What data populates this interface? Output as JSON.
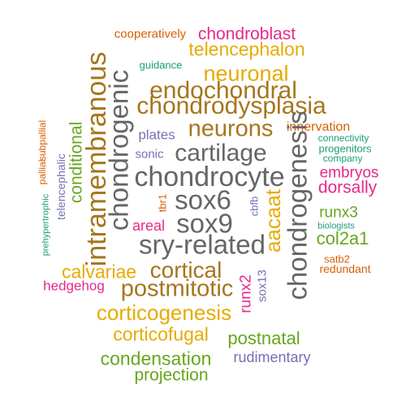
{
  "palette": {
    "orange": "#D95F02",
    "magenta": "#E7298A",
    "gold": "#E6AB02",
    "teal": "#1B9E77",
    "brown": "#A6761D",
    "gray": "#666666",
    "purple": "#7570B3",
    "green": "#66A61E"
  },
  "words": [
    {
      "text": "cooperatively",
      "color": "orange",
      "size": "xs"
    },
    {
      "text": "chondroblast",
      "color": "magenta",
      "size": "s"
    },
    {
      "text": "telencephalon",
      "color": "gold",
      "size": "m"
    },
    {
      "text": "guidance",
      "color": "teal",
      "size": "xs"
    },
    {
      "text": "neuronal",
      "color": "gold",
      "size": "m"
    },
    {
      "text": "endochondral",
      "color": "brown",
      "size": "l"
    },
    {
      "text": "chondrodysplasia",
      "color": "brown",
      "size": "l"
    },
    {
      "text": "neurons",
      "color": "brown",
      "size": "l"
    },
    {
      "text": "innervation",
      "color": "orange",
      "size": "s"
    },
    {
      "text": "plates",
      "color": "purple",
      "size": "s"
    },
    {
      "text": "connectivity",
      "color": "teal",
      "size": "xs"
    },
    {
      "text": "progenitors",
      "color": "teal",
      "size": "xs"
    },
    {
      "text": "company",
      "color": "teal",
      "size": "xs"
    },
    {
      "text": "sonic",
      "color": "purple",
      "size": "xs"
    },
    {
      "text": "cartilage",
      "color": "gray",
      "size": "l"
    },
    {
      "text": "embryos",
      "color": "magenta",
      "size": "m"
    },
    {
      "text": "dorsally",
      "color": "magenta",
      "size": "m"
    },
    {
      "text": "chondrocyte",
      "color": "gray",
      "size": "xl"
    },
    {
      "text": "sox6",
      "color": "gray",
      "size": "xl"
    },
    {
      "text": "sox9",
      "color": "gray",
      "size": "xl"
    },
    {
      "text": "sry-related",
      "color": "gray",
      "size": "xl"
    },
    {
      "text": "areal",
      "color": "magenta",
      "size": "m"
    },
    {
      "text": "runx3",
      "color": "green",
      "size": "m"
    },
    {
      "text": "biologists",
      "color": "teal",
      "size": "xs"
    },
    {
      "text": "col2a1",
      "color": "green",
      "size": "m"
    },
    {
      "text": "satb2",
      "color": "orange",
      "size": "xs"
    },
    {
      "text": "redundant",
      "color": "orange",
      "size": "xs"
    },
    {
      "text": "calvariae",
      "color": "gold",
      "size": "m"
    },
    {
      "text": "cortical",
      "color": "brown",
      "size": "l"
    },
    {
      "text": "hedgehog",
      "color": "magenta",
      "size": "s"
    },
    {
      "text": "postmitotic",
      "color": "brown",
      "size": "l"
    },
    {
      "text": "corticogenesis",
      "color": "gold",
      "size": "l"
    },
    {
      "text": "corticofugal",
      "color": "gold",
      "size": "l"
    },
    {
      "text": "postnatal",
      "color": "green",
      "size": "m"
    },
    {
      "text": "condensation",
      "color": "green",
      "size": "m"
    },
    {
      "text": "rudimentary",
      "color": "purple",
      "size": "s"
    },
    {
      "text": "projection",
      "color": "green",
      "size": "m"
    },
    {
      "text": "intramembranous",
      "color": "brown",
      "size": "l"
    },
    {
      "text": "chondrogenic",
      "color": "gray",
      "size": "l"
    },
    {
      "text": "chondrogenesis",
      "color": "gray",
      "size": "l"
    },
    {
      "text": "conditional",
      "color": "green",
      "size": "m"
    },
    {
      "text": "aacaat",
      "color": "gold",
      "size": "l"
    },
    {
      "text": "telencephalic",
      "color": "purple",
      "size": "s"
    },
    {
      "text": "pallial",
      "color": "orange",
      "size": "xs"
    },
    {
      "text": "subpallial",
      "color": "orange",
      "size": "xs"
    },
    {
      "text": "prehypertrophic",
      "color": "teal",
      "size": "xs"
    },
    {
      "text": "tbr1",
      "color": "orange",
      "size": "xs"
    },
    {
      "text": "cbfb",
      "color": "purple",
      "size": "xs"
    },
    {
      "text": "runx2",
      "color": "magenta",
      "size": "s"
    },
    {
      "text": "sox13",
      "color": "purple",
      "size": "xs"
    }
  ]
}
